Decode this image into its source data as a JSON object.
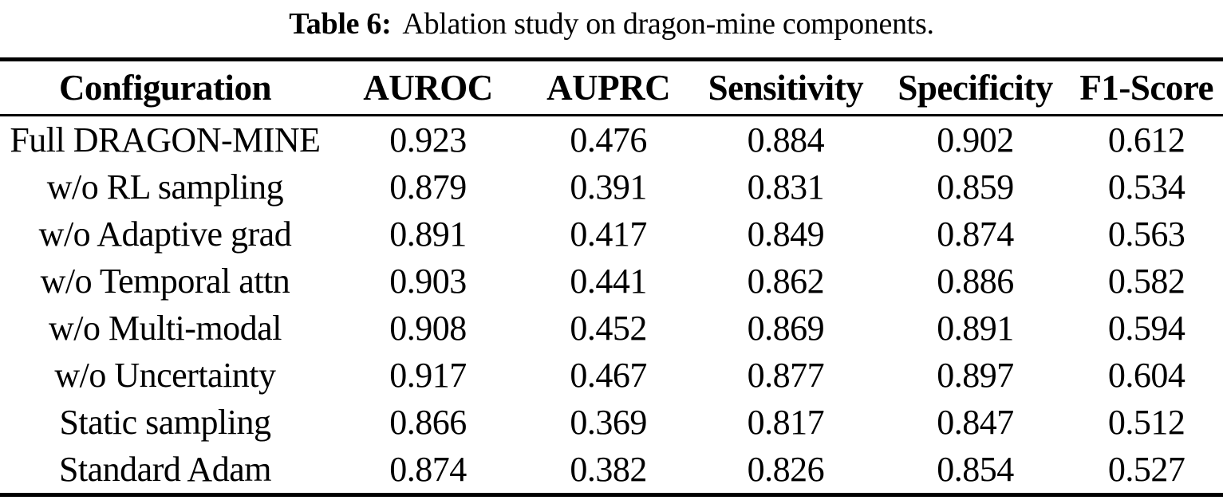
{
  "caption": {
    "label": "Table 6:",
    "text": "Ablation study on dragon-mine components."
  },
  "table": {
    "columns": [
      "Configuration",
      "AUROC",
      "AUPRC",
      "Sensitivity",
      "Specificity",
      "F1-Score"
    ],
    "rows": [
      {
        "config": "Full DRAGON-MINE",
        "auroc": "0.923",
        "auprc": "0.476",
        "sensitivity": "0.884",
        "specificity": "0.902",
        "f1": "0.612"
      },
      {
        "config": "w/o RL sampling",
        "auroc": "0.879",
        "auprc": "0.391",
        "sensitivity": "0.831",
        "specificity": "0.859",
        "f1": "0.534"
      },
      {
        "config": "w/o Adaptive grad",
        "auroc": "0.891",
        "auprc": "0.417",
        "sensitivity": "0.849",
        "specificity": "0.874",
        "f1": "0.563"
      },
      {
        "config": "w/o Temporal attn",
        "auroc": "0.903",
        "auprc": "0.441",
        "sensitivity": "0.862",
        "specificity": "0.886",
        "f1": "0.582"
      },
      {
        "config": "w/o Multi-modal",
        "auroc": "0.908",
        "auprc": "0.452",
        "sensitivity": "0.869",
        "specificity": "0.891",
        "f1": "0.594"
      },
      {
        "config": "w/o Uncertainty",
        "auroc": "0.917",
        "auprc": "0.467",
        "sensitivity": "0.877",
        "specificity": "0.897",
        "f1": "0.604"
      },
      {
        "config": "Static sampling",
        "auroc": "0.866",
        "auprc": "0.369",
        "sensitivity": "0.817",
        "specificity": "0.847",
        "f1": "0.512"
      },
      {
        "config": "Standard Adam",
        "auroc": "0.874",
        "auprc": "0.382",
        "sensitivity": "0.826",
        "specificity": "0.854",
        "f1": "0.527"
      }
    ]
  },
  "colors": {
    "text": "#000000",
    "background": "#ffffff",
    "rule": "#000000"
  }
}
